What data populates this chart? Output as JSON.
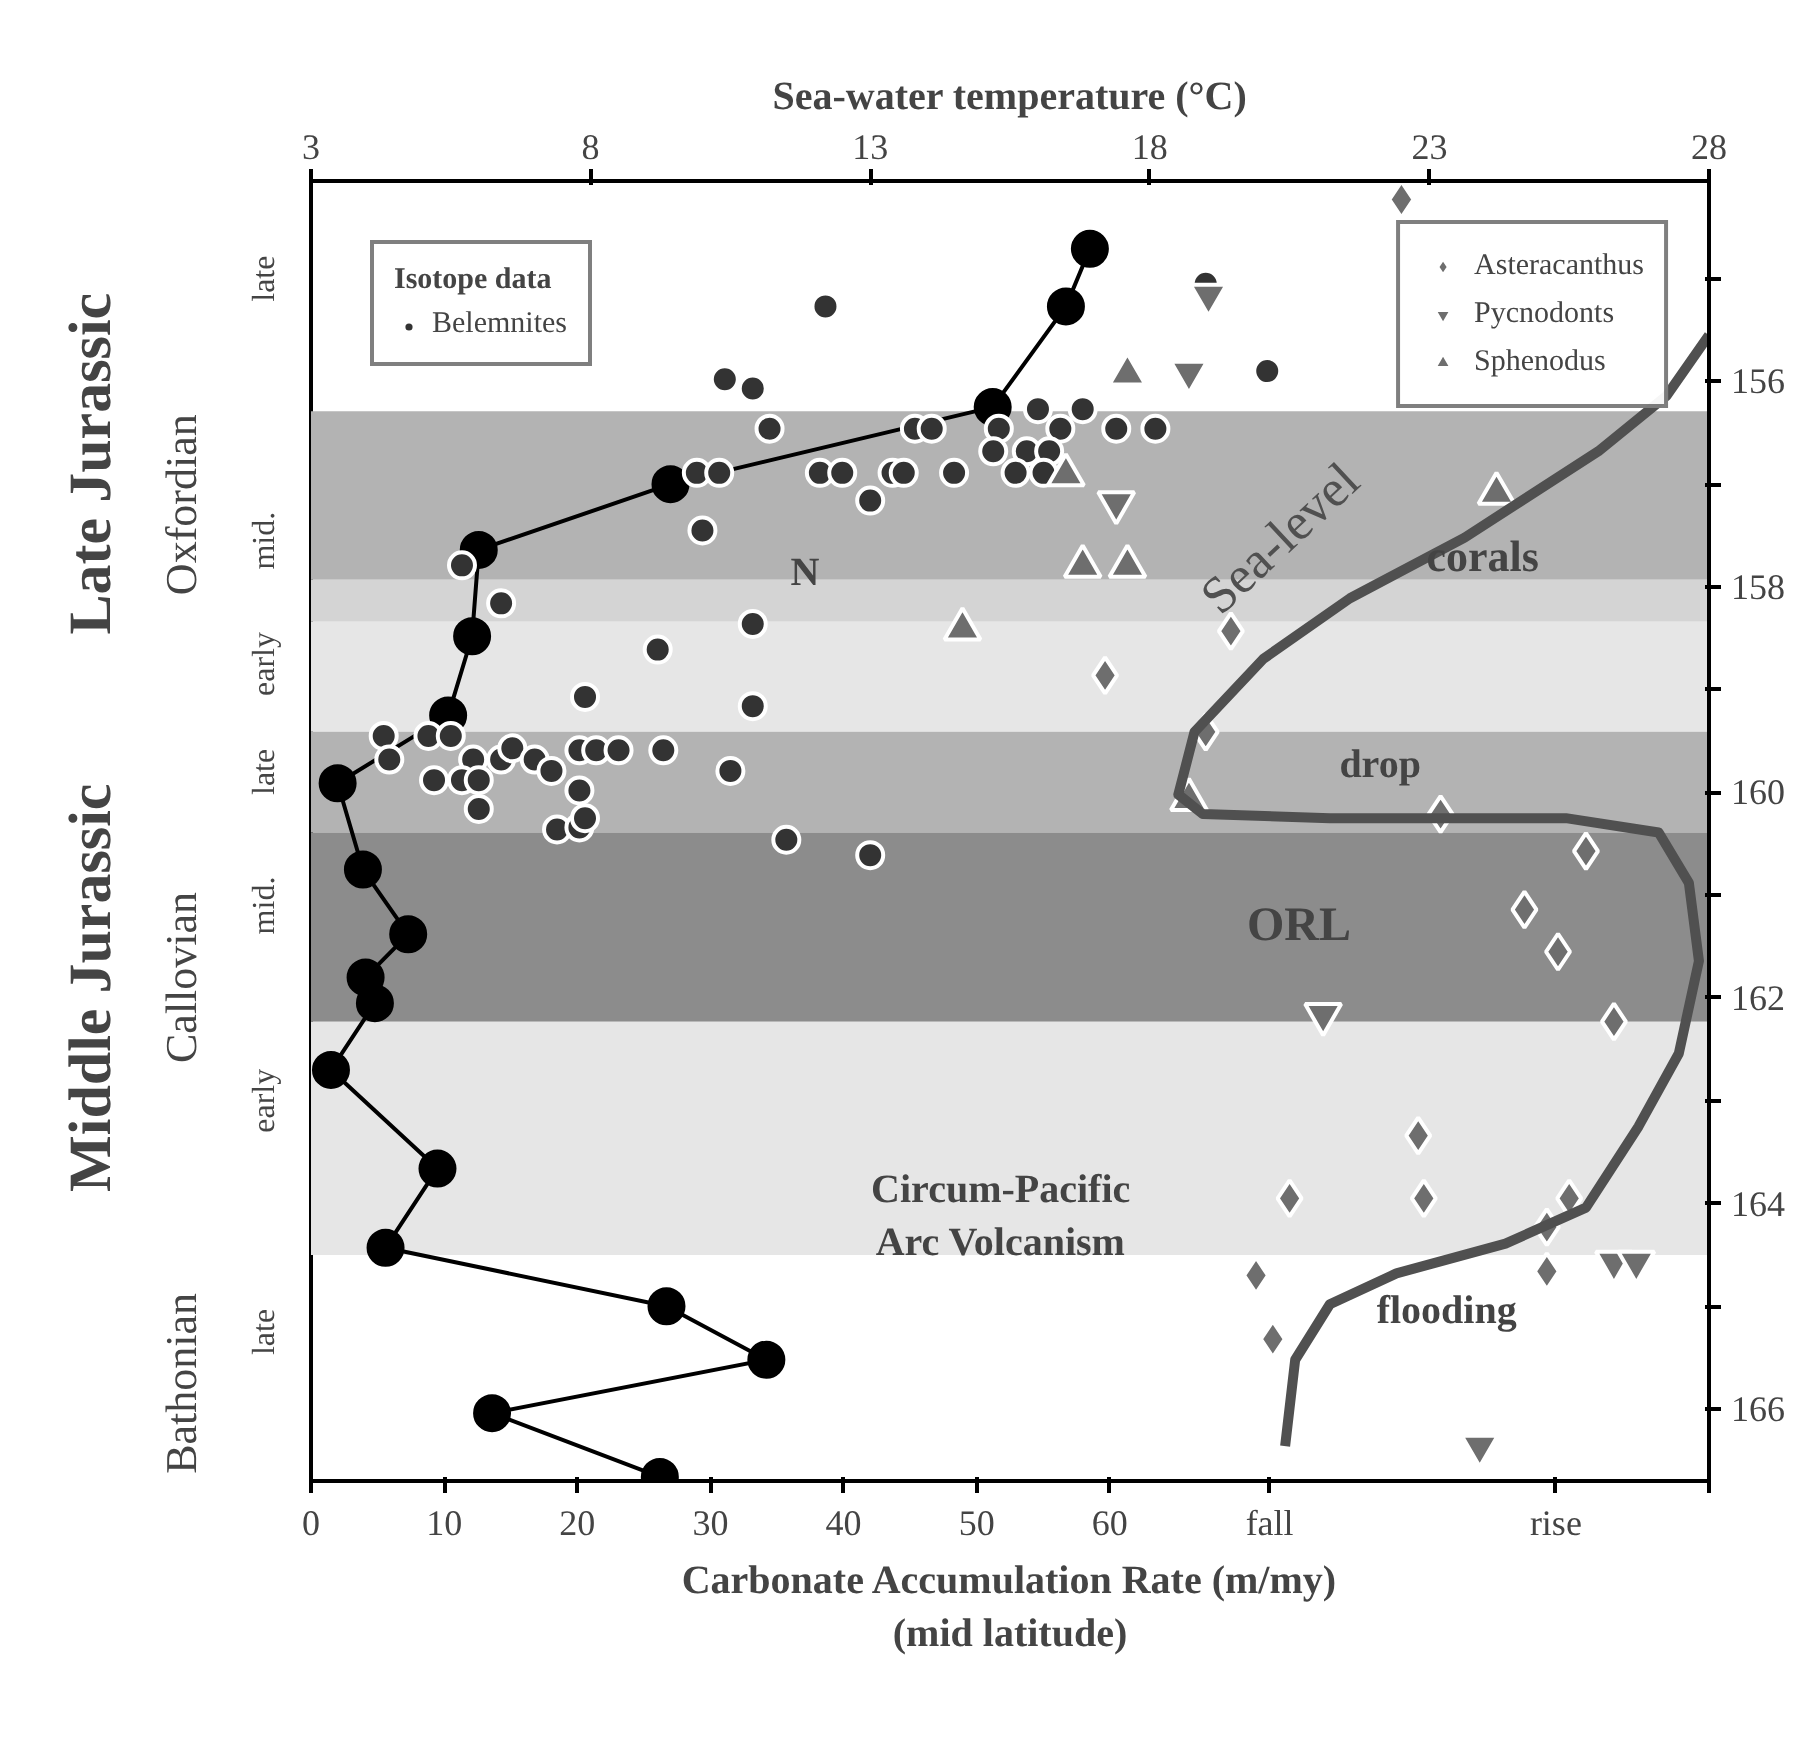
{
  "chart_data": {
    "type": "scatter",
    "xlabel": "Carbonate Accumulation Rate (m/my)\n(mid latitude)",
    "x2label": "Sea-water temperature (°C)",
    "legend_title": "Isotope data",
    "legend": "top left",
    "grid": false,
    "xlim": [
      0,
      105
    ],
    "xticks": [
      0,
      10,
      20,
      30,
      40,
      50,
      60,
      {
        "value": 72.0,
        "label": "fall"
      },
      {
        "value": 93.5,
        "label": "rise"
      },
      {
        "value": 105,
        "label": null
      }
    ],
    "x2lim": [
      3,
      28
    ],
    "x2ticks": [
      3,
      8,
      13,
      18,
      23,
      28
    ],
    "ylim": [
      166.7,
      154.05
    ],
    "yticks": [
      {
        "value": 155,
        "label": null
      },
      156,
      {
        "value": 157,
        "label": null
      },
      158,
      {
        "value": 159,
        "label": null
      },
      160,
      {
        "value": 161,
        "label": null
      },
      162,
      {
        "value": 163,
        "label": null
      },
      164,
      {
        "value": 165,
        "label": null
      },
      166
    ],
    "bands": [
      {
        "axis": "y",
        "from": 156.29,
        "to": 157.93,
        "color": "#b3b3b3"
      },
      {
        "axis": "y",
        "from": 157.93,
        "to": 158.34,
        "color": "#d4d4d4"
      },
      {
        "axis": "y",
        "from": 158.34,
        "to": 159.41,
        "color": "#e6e6e6"
      },
      {
        "axis": "y",
        "from": 159.41,
        "to": 160.39,
        "color": "#b3b3b3"
      },
      {
        "axis": "y",
        "from": 160.39,
        "to": 162.23,
        "color": "#8c8c8c"
      },
      {
        "axis": "y",
        "from": 162.23,
        "to": 164.5,
        "color": "#e6e6e6"
      }
    ],
    "annotations": [
      "ORL",
      "drop",
      "corals",
      "flooding",
      "N",
      "Circum-Pacific\nArc Volcanism",
      "late",
      "mid.",
      "early",
      "late",
      "mid.",
      "early",
      "late",
      "Oxfordian",
      "Callovian",
      "Bathonian",
      "Late Jurassic",
      "Middle Jurassic"
    ],
    "series": [
      {
        "type": "line",
        "marker": "circle",
        "color": "#000000",
        "x": [
          58.5,
          56.7,
          51.2,
          27.0,
          12.6,
          12.1,
          10.3,
          2.0,
          3.9,
          7.3,
          4.1,
          4.8,
          1.5,
          9.5,
          5.6,
          26.7,
          34.2,
          13.6,
          26.2
        ],
        "values": [
          154.71,
          155.27,
          156.25,
          157.0,
          157.64,
          158.48,
          159.25,
          159.91,
          160.75,
          161.38,
          161.8,
          162.05,
          162.7,
          163.66,
          164.43,
          165.0,
          165.52,
          166.04,
          166.66
        ]
      },
      {
        "marker": "circle",
        "name": "Belemnites",
        "color": "#333333",
        "axis": "x2",
        "x": [
          12.2,
          10.4,
          10.9,
          11.2,
          13.8,
          14.1,
          15.3,
          16.0,
          16.8,
          16.4,
          17.4,
          18.1,
          15.2,
          15.8,
          16.2,
          15.6,
          16.1,
          9.9,
          10.3,
          12.1,
          12.5,
          13.4,
          13.6,
          14.5,
          13.0,
          10.0,
          5.7,
          6.4,
          10.9,
          9.2,
          7.9,
          10.9,
          19.0,
          20.1,
          4.3,
          5.1,
          5.5,
          4.4,
          5.9,
          6.4,
          6.6,
          7.0,
          7.8,
          8.1,
          8.5,
          9.3,
          5.2,
          5.7,
          6.0,
          7.3,
          7.8,
          10.5,
          6.0,
          7.4,
          7.8,
          7.9,
          11.5,
          13.0
        ],
        "values": [
          155.27,
          155.98,
          156.07,
          156.46,
          156.46,
          156.46,
          156.46,
          156.27,
          156.27,
          156.46,
          156.46,
          156.46,
          156.68,
          156.68,
          156.68,
          156.89,
          156.89,
          156.89,
          156.89,
          156.89,
          156.89,
          156.89,
          156.89,
          156.89,
          157.16,
          157.45,
          157.79,
          158.16,
          158.36,
          158.61,
          159.07,
          159.16,
          155.05,
          155.9,
          159.45,
          159.45,
          159.45,
          159.68,
          159.68,
          159.68,
          159.57,
          159.68,
          159.59,
          159.59,
          159.59,
          159.59,
          159.88,
          159.88,
          159.88,
          159.79,
          159.98,
          159.79,
          160.16,
          160.36,
          160.34,
          160.25,
          160.46,
          160.61
        ]
      },
      {
        "marker": "diamond",
        "name": "Asteracanthus",
        "color": "#6e6e6e",
        "axis": "x2",
        "x": [
          22.5,
          19.45,
          19.0,
          23.2,
          25.8,
          24.7,
          25.3,
          26.3,
          22.8,
          20.5,
          22.9,
          25.5,
          25.1,
          19.9,
          25.1,
          20.2,
          17.2
        ],
        "values": [
          154.23,
          158.43,
          159.41,
          160.21,
          160.57,
          161.14,
          161.55,
          162.23,
          163.34,
          163.95,
          163.95,
          163.95,
          164.23,
          164.7,
          164.66,
          165.32,
          158.86
        ]
      },
      {
        "marker": "triangle_down",
        "name": "Pycnodonts",
        "color": "#6e6e6e",
        "axis": "x2",
        "x": [
          19.05,
          18.7,
          17.4,
          21.1,
          26.3,
          26.7,
          23.9
        ],
        "values": [
          155.16,
          155.91,
          157.18,
          162.16,
          164.57,
          164.57,
          166.36
        ]
      },
      {
        "marker": "triangle",
        "name": "Sphenodus",
        "color": "#6e6e6e",
        "axis": "x2",
        "x": [
          17.6,
          16.5,
          16.8,
          17.6,
          14.65,
          24.2,
          18.7
        ],
        "values": [
          155.93,
          156.91,
          157.8,
          157.8,
          158.41,
          157.09,
          160.07
        ]
      },
      {
        "type": "line",
        "marker": "none",
        "name": "Sea-level",
        "color": "#505050",
        "axis": "x2",
        "x": [
          28.0,
          27.24,
          26.02,
          23.63,
          21.58,
          20.03,
          18.8,
          18.51,
          18.95,
          21.22,
          25.44,
          27.1,
          27.64,
          27.82,
          27.46,
          26.74,
          25.8,
          24.36,
          22.41,
          21.22,
          20.6,
          20.42
        ],
        "values": [
          155.55,
          156.14,
          156.68,
          157.52,
          158.11,
          158.7,
          159.41,
          160.02,
          160.21,
          160.25,
          160.25,
          160.39,
          160.88,
          161.64,
          162.54,
          163.25,
          164.04,
          164.39,
          164.68,
          164.98,
          165.52,
          166.36
        ]
      }
    ]
  }
}
